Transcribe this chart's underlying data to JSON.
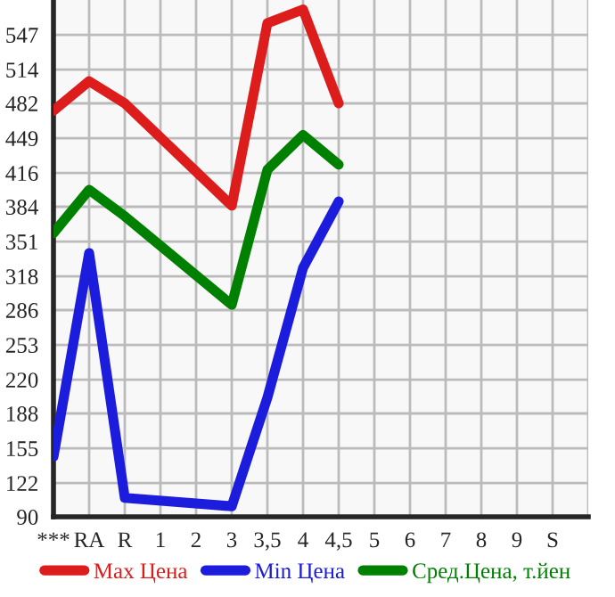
{
  "chart_data": {
    "type": "line",
    "categories": [
      "***",
      "RA",
      "R",
      "1",
      "2",
      "3",
      "3,5",
      "4",
      "4,5",
      "5",
      "6",
      "7",
      "8",
      "9",
      "S",
      null
    ],
    "series": [
      {
        "name": "Max Цена",
        "color": "#dd1c1c",
        "values": [
          475,
          503,
          482,
          null,
          null,
          385,
          558,
          571,
          482,
          null,
          null,
          null,
          null,
          null,
          null,
          null
        ]
      },
      {
        "name": "Min Цена",
        "color": "#1c1cdd",
        "values": [
          147,
          340,
          108,
          null,
          null,
          100,
          203,
          326,
          389,
          null,
          null,
          null,
          null,
          null,
          null,
          null
        ]
      },
      {
        "name": "Сред.Цена, т.йен",
        "color": "#008000",
        "values": [
          359,
          400,
          375,
          null,
          null,
          291,
          419,
          452,
          424,
          null,
          null,
          null,
          null,
          null,
          null,
          null
        ]
      }
    ],
    "ylim": [
      90,
      580
    ],
    "yticks": [
      90,
      122,
      155,
      188,
      220,
      253,
      286,
      318,
      351,
      384,
      416,
      449,
      482,
      514,
      547
    ],
    "grid": true,
    "legend": "bottom",
    "marker": "none",
    "line_style": "solid"
  }
}
